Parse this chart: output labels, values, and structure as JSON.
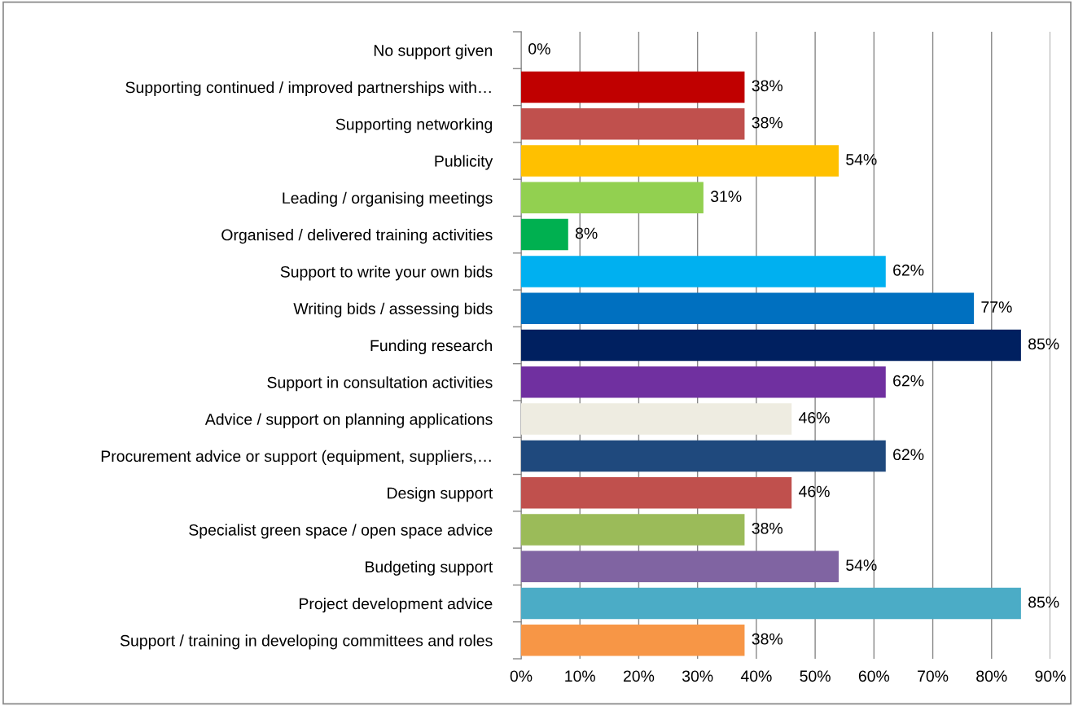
{
  "chart_data": {
    "type": "bar",
    "orientation": "horizontal",
    "categories": [
      "No support given",
      "Supporting continued / improved partnerships with…",
      "Supporting networking",
      "Publicity",
      "Leading / organising meetings",
      "Organised / delivered training activities",
      "Support to write your own bids",
      "Writing bids / assessing bids",
      "Funding research",
      "Support in consultation activities",
      "Advice / support on planning applications",
      "Procurement advice or support (equipment, suppliers,…",
      "Design support",
      "Specialist green space / open space advice",
      "Budgeting support",
      "Project development advice",
      "Support / training in developing committees and roles"
    ],
    "values": [
      0,
      38,
      38,
      54,
      31,
      8,
      62,
      77,
      85,
      62,
      46,
      62,
      46,
      38,
      54,
      85,
      38
    ],
    "colors": [
      "#c00000",
      "#c00000",
      "#c0504d",
      "#ffc000",
      "#92d050",
      "#00b050",
      "#00b0f0",
      "#0070c0",
      "#002060",
      "#7030a0",
      "#eeece1",
      "#1f497d",
      "#c0504d",
      "#9bbb59",
      "#8064a2",
      "#4bacc6",
      "#f79646"
    ],
    "value_labels": [
      "0%",
      "38%",
      "38%",
      "54%",
      "31%",
      "8%",
      "62%",
      "77%",
      "85%",
      "62%",
      "46%",
      "62%",
      "46%",
      "38%",
      "54%",
      "85%",
      "38%"
    ],
    "xlim": [
      0,
      90
    ],
    "xticks": [
      {
        "value": 0,
        "label": "0%"
      },
      {
        "value": 10,
        "label": "10%"
      },
      {
        "value": 20,
        "label": "20%"
      },
      {
        "value": 30,
        "label": "30%"
      },
      {
        "value": 40,
        "label": "40%"
      },
      {
        "value": 50,
        "label": "50%"
      },
      {
        "value": 60,
        "label": "60%"
      },
      {
        "value": 70,
        "label": "70%"
      },
      {
        "value": 80,
        "label": "80%"
      },
      {
        "value": 90,
        "label": "90%"
      }
    ],
    "grid": "x",
    "legend": false
  }
}
